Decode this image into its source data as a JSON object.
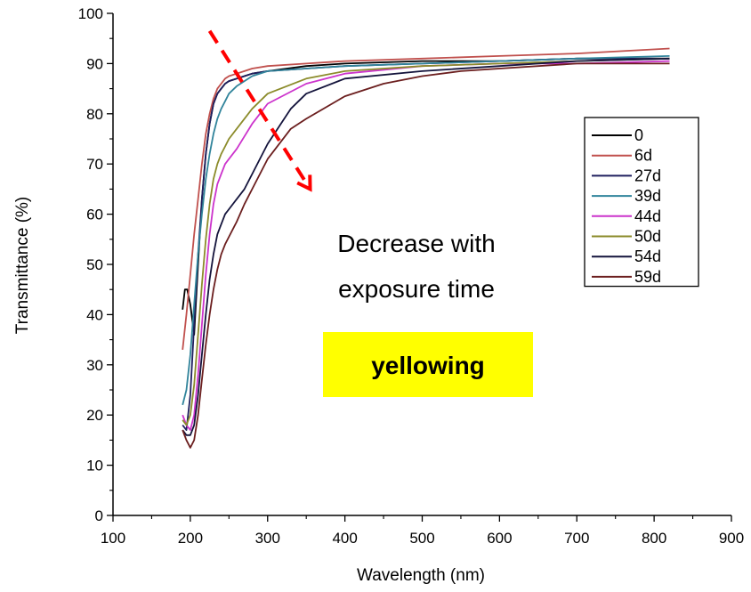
{
  "chart_data": {
    "type": "line",
    "title": "",
    "xlabel": "Wavelength (nm)",
    "ylabel": "Transmittance (%)",
    "xlim": [
      100,
      900
    ],
    "ylim": [
      0,
      100
    ],
    "xticks": [
      100,
      200,
      300,
      400,
      500,
      600,
      700,
      800,
      900
    ],
    "yticks": [
      0,
      10,
      20,
      30,
      40,
      50,
      60,
      70,
      80,
      90,
      100
    ],
    "legend_position": "right",
    "series": [
      {
        "name": "0",
        "color": "#000000",
        "x": [
          190,
          193,
          196,
          200,
          205,
          210,
          215,
          220,
          225,
          230,
          235,
          240,
          245,
          250,
          260,
          270,
          280,
          300,
          350,
          400,
          500,
          600,
          700,
          820
        ],
        "y": [
          41,
          45,
          45,
          42,
          36,
          50,
          63,
          72,
          78,
          82,
          84,
          85,
          86,
          86.5,
          87,
          87.5,
          88,
          88.5,
          89.5,
          90,
          90.5,
          90.5,
          91,
          91
        ]
      },
      {
        "name": "6d",
        "color": "#c0504d",
        "x": [
          190,
          195,
          200,
          205,
          210,
          215,
          220,
          225,
          230,
          235,
          240,
          245,
          250,
          260,
          270,
          280,
          300,
          350,
          400,
          500,
          600,
          700,
          820
        ],
        "y": [
          33,
          40,
          48,
          56,
          63,
          70,
          76,
          80,
          83,
          85,
          86,
          87,
          87.5,
          88,
          88.5,
          89,
          89.5,
          90,
          90.5,
          91,
          91.5,
          92,
          93
        ]
      },
      {
        "name": "27d",
        "color": "#1f1f5e",
        "x": [
          190,
          195,
          200,
          205,
          210,
          215,
          220,
          225,
          230,
          235,
          240,
          245,
          250,
          260,
          270,
          280,
          300,
          350,
          400,
          500,
          600,
          700,
          820
        ],
        "y": [
          18,
          17,
          24,
          38,
          52,
          63,
          72,
          78,
          82,
          84,
          85,
          86,
          86.5,
          87,
          87.5,
          88,
          88.5,
          89,
          89.5,
          90,
          90.5,
          91,
          91
        ]
      },
      {
        "name": "39d",
        "color": "#31849b",
        "x": [
          190,
          195,
          200,
          205,
          210,
          215,
          220,
          225,
          230,
          235,
          240,
          245,
          250,
          260,
          270,
          280,
          300,
          350,
          400,
          500,
          600,
          700,
          820
        ],
        "y": [
          22,
          25,
          32,
          42,
          52,
          60,
          67,
          72,
          76,
          79,
          81,
          82.5,
          84,
          85.5,
          86.5,
          87.5,
          88.5,
          89,
          89.5,
          90,
          90.5,
          91,
          91.5
        ]
      },
      {
        "name": "44d",
        "color": "#cc33cc",
        "x": [
          190,
          195,
          200,
          205,
          210,
          215,
          220,
          225,
          230,
          235,
          240,
          245,
          250,
          260,
          270,
          280,
          300,
          350,
          400,
          500,
          600,
          700,
          820
        ],
        "y": [
          20,
          18,
          17,
          20,
          28,
          38,
          48,
          56,
          62,
          66,
          68,
          70,
          71,
          73,
          75.5,
          78,
          82,
          86,
          88,
          89.5,
          90,
          90,
          90.5
        ]
      },
      {
        "name": "50d",
        "color": "#8b8b2a",
        "x": [
          190,
          195,
          200,
          205,
          210,
          215,
          220,
          225,
          230,
          235,
          240,
          245,
          250,
          260,
          270,
          280,
          300,
          350,
          400,
          500,
          600,
          700,
          820
        ],
        "y": [
          19,
          18,
          20,
          26,
          36,
          46,
          55,
          62,
          67,
          70,
          72,
          73.5,
          75,
          77,
          79,
          81,
          84,
          87,
          88.5,
          89.5,
          90,
          90.5,
          91
        ]
      },
      {
        "name": "54d",
        "color": "#14143c",
        "x": [
          190,
          195,
          200,
          205,
          210,
          215,
          220,
          225,
          230,
          235,
          240,
          245,
          250,
          260,
          270,
          280,
          300,
          330,
          350,
          400,
          500,
          600,
          700,
          820
        ],
        "y": [
          17,
          16,
          16,
          18,
          24,
          32,
          40,
          47,
          52,
          56,
          58,
          60,
          61,
          63,
          65,
          68,
          74,
          81,
          84,
          87,
          88.5,
          89.5,
          90.5,
          91
        ]
      },
      {
        "name": "59d",
        "color": "#6b1e1e",
        "x": [
          190,
          195,
          200,
          205,
          210,
          215,
          220,
          225,
          230,
          235,
          240,
          245,
          250,
          260,
          270,
          280,
          300,
          330,
          350,
          400,
          450,
          500,
          550,
          600,
          700,
          820
        ],
        "y": [
          17,
          15,
          13.5,
          15,
          20,
          27,
          34,
          40,
          45,
          49,
          52,
          54,
          55.5,
          58.5,
          62,
          65,
          71,
          77,
          79,
          83.5,
          86,
          87.5,
          88.5,
          89,
          90,
          90
        ]
      }
    ],
    "annotations": [
      {
        "text": "Decrease with"
      },
      {
        "text": "exposure time"
      },
      {
        "text": "yellowing",
        "background": "#ffff00",
        "bold": true
      }
    ],
    "arrow": {
      "from": [
        225,
        96.5
      ],
      "to": [
        355,
        65
      ],
      "color": "#ff0000",
      "style": "dashed"
    }
  }
}
